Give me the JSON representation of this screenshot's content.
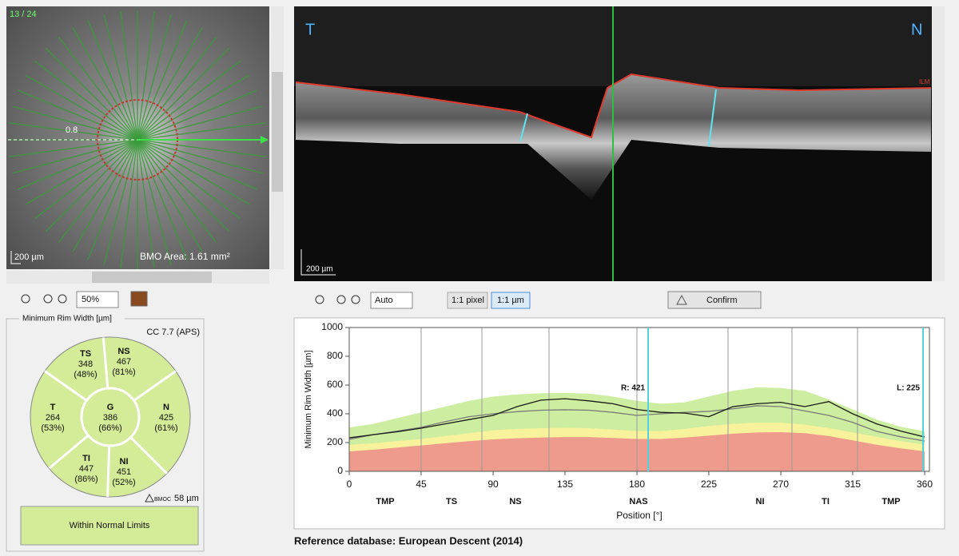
{
  "fundus": {
    "counter": "13 / 24",
    "distance": "0.8",
    "scale": "200 µm",
    "bmo_area": "BMO Area: 1.61 mm²",
    "zoom": "50%"
  },
  "oct": {
    "left": "T",
    "right": "N",
    "layer": "ILM",
    "scale": "200 µm",
    "zoom": "Auto",
    "pixel_btn": "1:1 pixel",
    "um_btn": "1:1 µm",
    "confirm": "Confirm"
  },
  "rim_panel": {
    "title": "Minimum Rim Width [µm]",
    "cc": "CC 7.7 (APS)",
    "sectors": [
      {
        "label": "TS",
        "value": 348,
        "percent": "(48%)"
      },
      {
        "label": "NS",
        "value": 467,
        "percent": "(81%)"
      },
      {
        "label": "T",
        "value": 264,
        "percent": "(53%)"
      },
      {
        "label": "G",
        "value": 386,
        "percent": "(66%)"
      },
      {
        "label": "N",
        "value": 425,
        "percent": "(61%)"
      },
      {
        "label": "TI",
        "value": 447,
        "percent": "(86%)"
      },
      {
        "label": "NI",
        "value": 451,
        "percent": "(52%)"
      }
    ],
    "bmoc_label": "BMOC",
    "bmoc_value": "58 µm",
    "classification": "Within Normal Limits"
  },
  "chart_data": {
    "type": "line",
    "ylabel": "Minimum Rim Width [µm]",
    "xlabel": "Position [°]",
    "x": [
      0,
      15,
      30,
      45,
      60,
      75,
      90,
      105,
      120,
      135,
      150,
      165,
      180,
      195,
      210,
      225,
      240,
      255,
      270,
      285,
      300,
      315,
      330,
      345,
      360
    ],
    "bands": [
      {
        "color": "#cdeea0",
        "values": [
          305,
          330,
          370,
          410,
          450,
          490,
          520,
          535,
          543,
          545,
          540,
          520,
          490,
          470,
          480,
          520,
          560,
          583,
          580,
          560,
          500,
          430,
          360,
          310,
          278
        ]
      },
      {
        "color": "#f8f29c",
        "values": [
          185,
          195,
          210,
          225,
          245,
          265,
          285,
          295,
          300,
          302,
          300,
          290,
          280,
          280,
          295,
          315,
          330,
          338,
          338,
          325,
          300,
          270,
          240,
          210,
          185
        ]
      },
      {
        "color": "#ee9a8c",
        "values": [
          139,
          150,
          165,
          180,
          195,
          210,
          222,
          230,
          235,
          238,
          238,
          232,
          225,
          225,
          235,
          248,
          262,
          270,
          272,
          265,
          245,
          215,
          185,
          160,
          139
        ]
      }
    ],
    "series": [
      {
        "color": "#7a7a7a",
        "values": [
          222,
          255,
          280,
          306,
          345,
          380,
          400,
          415,
          425,
          428,
          425,
          410,
          389,
          400,
          410,
          417,
          435,
          456,
          450,
          420,
          389,
          340,
          278,
          240,
          211
        ]
      },
      {
        "color": "#1a1a1a",
        "values": [
          233,
          255,
          275,
          300,
          330,
          360,
          389,
          450,
          495,
          505,
          490,
          470,
          430,
          410,
          405,
          380,
          450,
          470,
          480,
          450,
          485,
          400,
          330,
          280,
          239
        ]
      }
    ],
    "xlim": [
      0,
      363
    ],
    "ylim": [
      0,
      1000
    ],
    "xticks": [
      0,
      45,
      90,
      135,
      180,
      225,
      270,
      315,
      360
    ],
    "yticks": [
      0,
      200,
      400,
      600,
      800,
      1000
    ],
    "xgrid": [
      45,
      83,
      125,
      180,
      237,
      277,
      318
    ],
    "sector_labels": [
      {
        "value": 22.5,
        "label": "TMP"
      },
      {
        "value": 64,
        "label": "TS"
      },
      {
        "value": 104,
        "label": "NS"
      },
      {
        "value": 181,
        "label": "NAS"
      },
      {
        "value": 257,
        "label": "NI"
      },
      {
        "value": 298,
        "label": "TI"
      },
      {
        "value": 339,
        "label": "TMP"
      }
    ],
    "cursors": [
      {
        "x": 187,
        "label": "R: 421"
      },
      {
        "x": 359,
        "label": "L: 225"
      }
    ],
    "cursor_color": "#55d0e0"
  },
  "footer": "Reference database: European Descent (2014)"
}
